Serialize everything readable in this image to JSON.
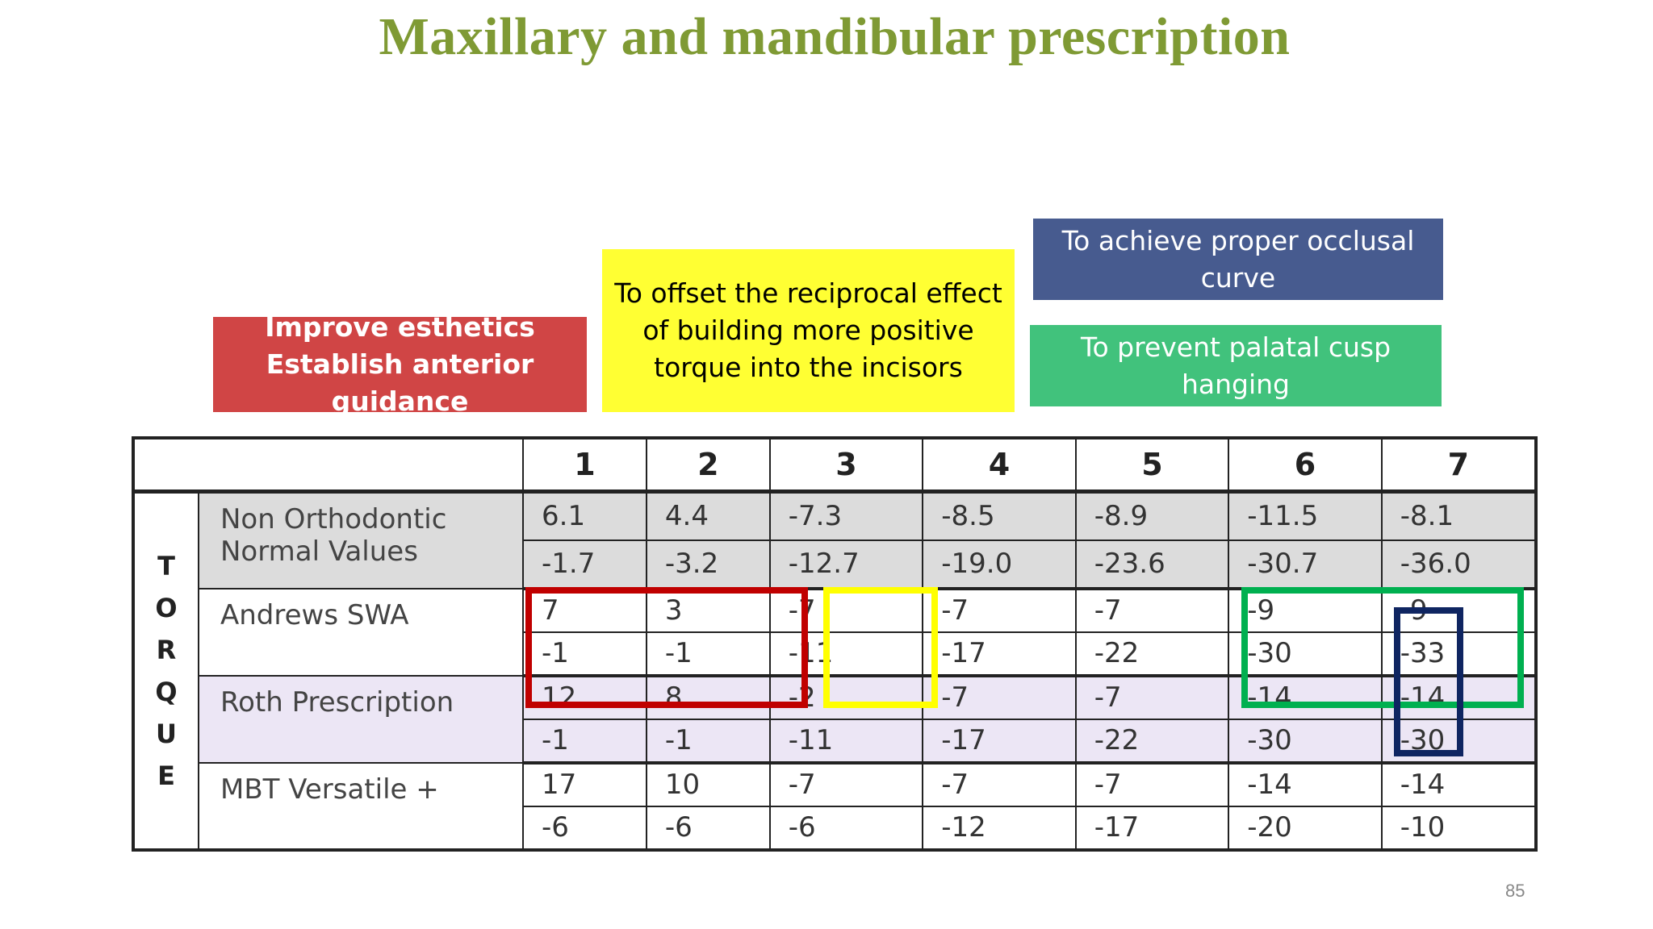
{
  "title": "Maxillary and mandibular prescription",
  "notes": {
    "red": "Improve esthetics\nEstablish anterior guidance",
    "yellow": "To offset the reciprocal effect\nof building more positive\ntorque into the incisors",
    "navy": "To achieve proper occlusal\ncurve",
    "green": "To prevent palatal cusp\nhanging"
  },
  "table": {
    "side_label": "TORQUE",
    "columns": [
      "1",
      "2",
      "3",
      "4",
      "5",
      "6",
      "7"
    ],
    "rows": [
      {
        "label": "Non Orthodontic\nNormal Values",
        "upper": [
          "6.1",
          "4.4",
          "-7.3",
          "-8.5",
          "-8.9",
          "-11.5",
          "-8.1"
        ],
        "lower": [
          "-1.7",
          "-3.2",
          "-12.7",
          "-19.0",
          "-23.6",
          "-30.7",
          "-36.0"
        ]
      },
      {
        "label": "Andrews SWA",
        "upper": [
          "7",
          "3",
          "-7",
          "-7",
          "-7",
          "-9",
          "-9"
        ],
        "lower": [
          "-1",
          "-1",
          "-11",
          "-17",
          "-22",
          "-30",
          "-33"
        ]
      },
      {
        "label": "Roth Prescription",
        "upper": [
          "12",
          "8",
          "-2",
          "-7",
          "-7",
          "-14",
          "-14"
        ],
        "lower": [
          "-1",
          "-1",
          "-11",
          "-17",
          "-22",
          "-30",
          "-30"
        ]
      },
      {
        "label": "MBT Versatile +",
        "upper": [
          "17",
          "10",
          "-7",
          "-7",
          "-7",
          "-14",
          "-14"
        ],
        "lower": [
          "-6",
          "-6",
          "-6",
          "-12",
          "-17",
          "-20",
          "-10"
        ]
      }
    ]
  },
  "highlight_colors": {
    "red": "#c00000",
    "yellow": "#ffff00",
    "green": "#00b050",
    "navy": "#0f2561"
  },
  "page_number": "85"
}
